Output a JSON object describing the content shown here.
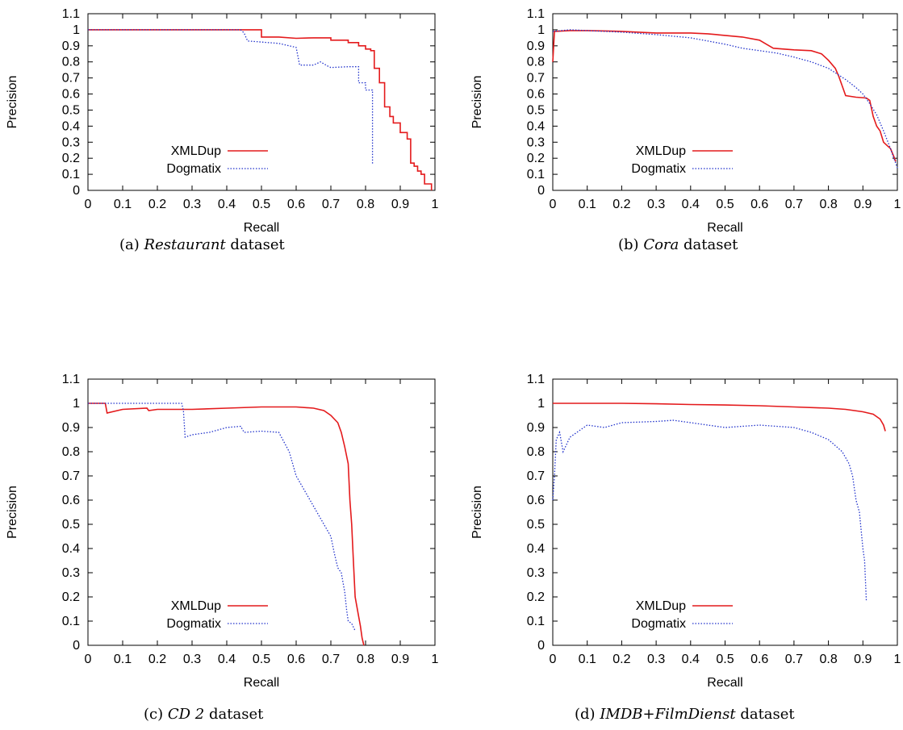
{
  "chart_data": [
    {
      "type": "line",
      "caption": {
        "prefix": "(a)",
        "name": "Restaurant",
        "suffix": "dataset"
      },
      "xlabel": "Recall",
      "ylabel": "Precision",
      "xlim": [
        0,
        1
      ],
      "ylim": [
        0,
        1.1
      ],
      "xticks": [
        "0",
        "0.1",
        "0.2",
        "0.3",
        "0.4",
        "0.5",
        "0.6",
        "0.7",
        "0.8",
        "0.9",
        "1"
      ],
      "yticks": [
        "0",
        "0.1",
        "0.2",
        "0.3",
        "0.4",
        "0.5",
        "0.6",
        "0.7",
        "0.8",
        "0.9",
        "1",
        "1.1"
      ],
      "grid": false,
      "legend": "bottom-left",
      "series": [
        {
          "name": "XMLDup",
          "color": "#e41a1c",
          "style": "solid",
          "points": [
            [
              0,
              1.0
            ],
            [
              0.5,
              1.0
            ],
            [
              0.5,
              0.955
            ],
            [
              0.55,
              0.955
            ],
            [
              0.6,
              0.947
            ],
            [
              0.65,
              0.95
            ],
            [
              0.7,
              0.95
            ],
            [
              0.7,
              0.935
            ],
            [
              0.75,
              0.935
            ],
            [
              0.75,
              0.92
            ],
            [
              0.78,
              0.92
            ],
            [
              0.78,
              0.9
            ],
            [
              0.8,
              0.9
            ],
            [
              0.8,
              0.88
            ],
            [
              0.815,
              0.88
            ],
            [
              0.815,
              0.87
            ],
            [
              0.825,
              0.87
            ],
            [
              0.825,
              0.76
            ],
            [
              0.84,
              0.76
            ],
            [
              0.84,
              0.67
            ],
            [
              0.855,
              0.67
            ],
            [
              0.855,
              0.52
            ],
            [
              0.87,
              0.52
            ],
            [
              0.87,
              0.46
            ],
            [
              0.88,
              0.46
            ],
            [
              0.88,
              0.42
            ],
            [
              0.9,
              0.42
            ],
            [
              0.9,
              0.36
            ],
            [
              0.92,
              0.36
            ],
            [
              0.92,
              0.32
            ],
            [
              0.93,
              0.32
            ],
            [
              0.93,
              0.17
            ],
            [
              0.94,
              0.17
            ],
            [
              0.94,
              0.15
            ],
            [
              0.95,
              0.15
            ],
            [
              0.95,
              0.12
            ],
            [
              0.96,
              0.12
            ],
            [
              0.96,
              0.1
            ],
            [
              0.97,
              0.1
            ],
            [
              0.97,
              0.04
            ],
            [
              0.99,
              0.04
            ],
            [
              0.99,
              0.0
            ]
          ]
        },
        {
          "name": "Dogmatix",
          "color": "#2233cc",
          "style": "dotted",
          "points": [
            [
              0,
              1.0
            ],
            [
              0.44,
              1.0
            ],
            [
              0.45,
              0.98
            ],
            [
              0.46,
              0.93
            ],
            [
              0.52,
              0.92
            ],
            [
              0.55,
              0.915
            ],
            [
              0.58,
              0.9
            ],
            [
              0.6,
              0.89
            ],
            [
              0.61,
              0.78
            ],
            [
              0.65,
              0.78
            ],
            [
              0.67,
              0.8
            ],
            [
              0.69,
              0.775
            ],
            [
              0.7,
              0.765
            ],
            [
              0.75,
              0.77
            ],
            [
              0.78,
              0.77
            ],
            [
              0.78,
              0.67
            ],
            [
              0.8,
              0.67
            ],
            [
              0.8,
              0.625
            ],
            [
              0.82,
              0.625
            ],
            [
              0.82,
              0.16
            ]
          ]
        }
      ]
    },
    {
      "type": "line",
      "caption": {
        "prefix": "(b)",
        "name": "Cora",
        "suffix": "dataset"
      },
      "xlabel": "Recall",
      "ylabel": "Precision",
      "xlim": [
        0,
        1
      ],
      "ylim": [
        0,
        1.1
      ],
      "xticks": [
        "0",
        "0.1",
        "0.2",
        "0.3",
        "0.4",
        "0.5",
        "0.6",
        "0.7",
        "0.8",
        "0.9",
        "1"
      ],
      "yticks": [
        "0",
        "0.1",
        "0.2",
        "0.3",
        "0.4",
        "0.5",
        "0.6",
        "0.7",
        "0.8",
        "0.9",
        "1",
        "1.1"
      ],
      "grid": false,
      "legend": "bottom-left",
      "series": [
        {
          "name": "XMLDup",
          "color": "#e41a1c",
          "style": "solid",
          "points": [
            [
              0,
              0.8
            ],
            [
              0.005,
              0.99
            ],
            [
              0.05,
              0.995
            ],
            [
              0.1,
              0.995
            ],
            [
              0.2,
              0.99
            ],
            [
              0.3,
              0.98
            ],
            [
              0.4,
              0.98
            ],
            [
              0.45,
              0.975
            ],
            [
              0.5,
              0.965
            ],
            [
              0.55,
              0.955
            ],
            [
              0.6,
              0.935
            ],
            [
              0.62,
              0.91
            ],
            [
              0.64,
              0.885
            ],
            [
              0.7,
              0.875
            ],
            [
              0.75,
              0.87
            ],
            [
              0.78,
              0.85
            ],
            [
              0.8,
              0.81
            ],
            [
              0.82,
              0.76
            ],
            [
              0.83,
              0.71
            ],
            [
              0.84,
              0.65
            ],
            [
              0.85,
              0.59
            ],
            [
              0.88,
              0.58
            ],
            [
              0.91,
              0.575
            ],
            [
              0.92,
              0.56
            ],
            [
              0.93,
              0.46
            ],
            [
              0.94,
              0.4
            ],
            [
              0.95,
              0.37
            ],
            [
              0.96,
              0.3
            ],
            [
              0.97,
              0.28
            ],
            [
              0.98,
              0.26
            ],
            [
              0.99,
              0.21
            ],
            [
              0.995,
              0.18
            ]
          ]
        },
        {
          "name": "Dogmatix",
          "color": "#2233cc",
          "style": "dotted",
          "points": [
            [
              0,
              0.99
            ],
            [
              0.05,
              1.0
            ],
            [
              0.1,
              0.995
            ],
            [
              0.2,
              0.985
            ],
            [
              0.3,
              0.97
            ],
            [
              0.4,
              0.95
            ],
            [
              0.5,
              0.91
            ],
            [
              0.55,
              0.885
            ],
            [
              0.6,
              0.87
            ],
            [
              0.65,
              0.855
            ],
            [
              0.7,
              0.83
            ],
            [
              0.75,
              0.8
            ],
            [
              0.8,
              0.76
            ],
            [
              0.85,
              0.69
            ],
            [
              0.88,
              0.64
            ],
            [
              0.9,
              0.6
            ],
            [
              0.92,
              0.54
            ],
            [
              0.94,
              0.47
            ],
            [
              0.96,
              0.37
            ],
            [
              0.98,
              0.26
            ],
            [
              0.99,
              0.2
            ],
            [
              1.0,
              0.14
            ]
          ]
        }
      ]
    },
    {
      "type": "line",
      "caption": {
        "prefix": "(c)",
        "name": "CD 2",
        "suffix": "dataset"
      },
      "xlabel": "Recall",
      "ylabel": "Precision",
      "xlim": [
        0,
        1
      ],
      "ylim": [
        0,
        1.1
      ],
      "xticks": [
        "0",
        "0.1",
        "0.2",
        "0.3",
        "0.4",
        "0.5",
        "0.6",
        "0.7",
        "0.8",
        "0.9",
        "1"
      ],
      "yticks": [
        "0",
        "0.1",
        "0.2",
        "0.3",
        "0.4",
        "0.5",
        "0.6",
        "0.7",
        "0.8",
        "0.9",
        "1",
        "1.1"
      ],
      "grid": false,
      "legend": "bottom-left",
      "series": [
        {
          "name": "XMLDup",
          "color": "#e41a1c",
          "style": "solid",
          "points": [
            [
              0,
              1.0
            ],
            [
              0.05,
              1.0
            ],
            [
              0.055,
              0.96
            ],
            [
              0.1,
              0.975
            ],
            [
              0.17,
              0.98
            ],
            [
              0.175,
              0.97
            ],
            [
              0.2,
              0.975
            ],
            [
              0.3,
              0.975
            ],
            [
              0.4,
              0.98
            ],
            [
              0.5,
              0.985
            ],
            [
              0.6,
              0.985
            ],
            [
              0.65,
              0.98
            ],
            [
              0.68,
              0.97
            ],
            [
              0.7,
              0.95
            ],
            [
              0.72,
              0.92
            ],
            [
              0.73,
              0.88
            ],
            [
              0.74,
              0.82
            ],
            [
              0.75,
              0.75
            ],
            [
              0.755,
              0.6
            ],
            [
              0.76,
              0.5
            ],
            [
              0.765,
              0.35
            ],
            [
              0.77,
              0.2
            ],
            [
              0.78,
              0.12
            ],
            [
              0.785,
              0.08
            ],
            [
              0.79,
              0.03
            ],
            [
              0.795,
              0.0
            ]
          ]
        },
        {
          "name": "Dogmatix",
          "color": "#2233cc",
          "style": "dotted",
          "points": [
            [
              0,
              1.0
            ],
            [
              0.27,
              1.0
            ],
            [
              0.275,
              0.97
            ],
            [
              0.28,
              0.86
            ],
            [
              0.3,
              0.87
            ],
            [
              0.35,
              0.88
            ],
            [
              0.4,
              0.9
            ],
            [
              0.44,
              0.905
            ],
            [
              0.45,
              0.88
            ],
            [
              0.5,
              0.885
            ],
            [
              0.55,
              0.88
            ],
            [
              0.58,
              0.8
            ],
            [
              0.6,
              0.7
            ],
            [
              0.62,
              0.65
            ],
            [
              0.64,
              0.6
            ],
            [
              0.66,
              0.55
            ],
            [
              0.68,
              0.5
            ],
            [
              0.7,
              0.45
            ],
            [
              0.71,
              0.38
            ],
            [
              0.72,
              0.32
            ],
            [
              0.73,
              0.3
            ],
            [
              0.74,
              0.22
            ],
            [
              0.745,
              0.15
            ],
            [
              0.75,
              0.1
            ],
            [
              0.76,
              0.09
            ],
            [
              0.77,
              0.06
            ]
          ]
        }
      ]
    },
    {
      "type": "line",
      "caption": {
        "prefix": "(d)",
        "name": "IMDB+FilmDienst",
        "suffix": "dataset"
      },
      "xlabel": "Recall",
      "ylabel": "Precision",
      "xlim": [
        0,
        1
      ],
      "ylim": [
        0,
        1.1
      ],
      "xticks": [
        "0",
        "0.1",
        "0.2",
        "0.3",
        "0.4",
        "0.5",
        "0.6",
        "0.7",
        "0.8",
        "0.9",
        "1"
      ],
      "yticks": [
        "0",
        "0.1",
        "0.2",
        "0.3",
        "0.4",
        "0.5",
        "0.6",
        "0.7",
        "0.8",
        "0.9",
        "1",
        "1.1"
      ],
      "grid": false,
      "legend": "bottom-left",
      "series": [
        {
          "name": "XMLDup",
          "color": "#e41a1c",
          "style": "solid",
          "points": [
            [
              0,
              1.0
            ],
            [
              0.1,
              1.0
            ],
            [
              0.2,
              1.0
            ],
            [
              0.3,
              0.998
            ],
            [
              0.4,
              0.995
            ],
            [
              0.5,
              0.993
            ],
            [
              0.6,
              0.99
            ],
            [
              0.7,
              0.985
            ],
            [
              0.8,
              0.98
            ],
            [
              0.85,
              0.975
            ],
            [
              0.9,
              0.965
            ],
            [
              0.93,
              0.955
            ],
            [
              0.95,
              0.935
            ],
            [
              0.96,
              0.91
            ],
            [
              0.965,
              0.885
            ]
          ]
        },
        {
          "name": "Dogmatix",
          "color": "#2233cc",
          "style": "dotted",
          "points": [
            [
              0,
              0.6
            ],
            [
              0.005,
              0.7
            ],
            [
              0.01,
              0.85
            ],
            [
              0.02,
              0.88
            ],
            [
              0.03,
              0.8
            ],
            [
              0.05,
              0.86
            ],
            [
              0.07,
              0.88
            ],
            [
              0.1,
              0.91
            ],
            [
              0.15,
              0.9
            ],
            [
              0.2,
              0.92
            ],
            [
              0.3,
              0.925
            ],
            [
              0.35,
              0.93
            ],
            [
              0.4,
              0.92
            ],
            [
              0.5,
              0.9
            ],
            [
              0.6,
              0.91
            ],
            [
              0.7,
              0.9
            ],
            [
              0.75,
              0.88
            ],
            [
              0.8,
              0.85
            ],
            [
              0.84,
              0.8
            ],
            [
              0.86,
              0.75
            ],
            [
              0.87,
              0.7
            ],
            [
              0.88,
              0.6
            ],
            [
              0.89,
              0.55
            ],
            [
              0.9,
              0.4
            ],
            [
              0.905,
              0.35
            ],
            [
              0.91,
              0.18
            ]
          ]
        }
      ]
    }
  ]
}
